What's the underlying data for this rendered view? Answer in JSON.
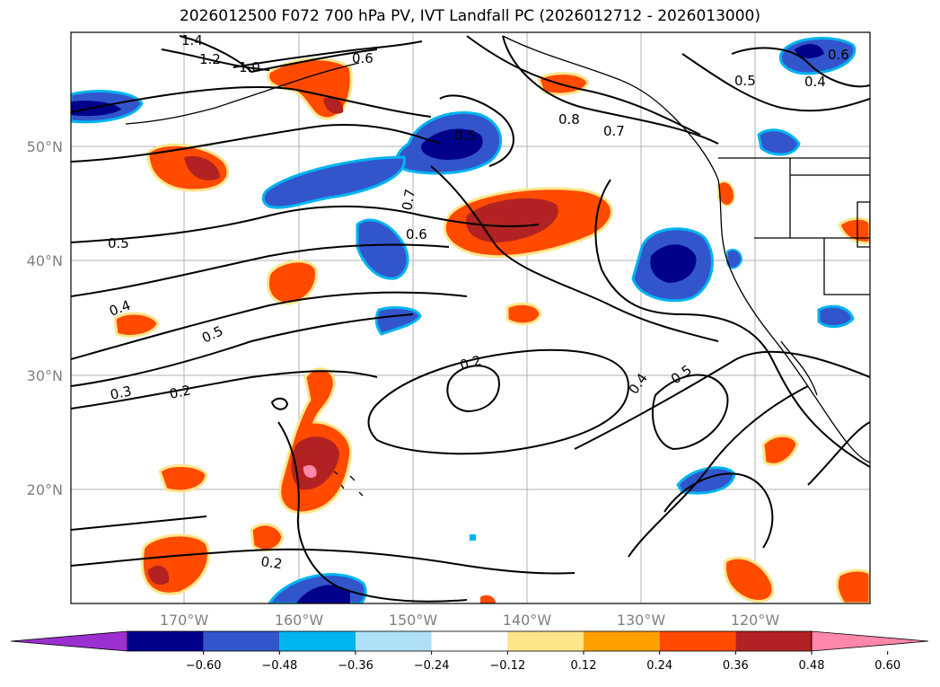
{
  "title": "2026012500 F072 700 hPa PV, IVT Landfall PC (2026012712 - 2026013000)",
  "map": {
    "lat_labels": [
      "50°N",
      "40°N",
      "30°N",
      "20°N"
    ],
    "lon_labels": [
      "170°W",
      "160°W",
      "150°W",
      "140°W",
      "130°W",
      "120°W"
    ],
    "lat_range": [
      10,
      60
    ],
    "lon_range": [
      -180,
      -110
    ],
    "contour_labels": [
      "1.4",
      "1.2",
      "1.0",
      "0.6",
      "0.5",
      "0.8",
      "0.7",
      "0.5",
      "0.6",
      "0.4",
      "0.7",
      "0.6",
      "0.5",
      "0.4",
      "0.5",
      "0.3",
      "0.2",
      "0.2",
      "0.4",
      "0.5",
      "0.2"
    ]
  },
  "colorbar": {
    "colors": [
      "#9b30d0",
      "#00008b",
      "#3355cc",
      "#00b4f0",
      "#aee0f8",
      "#ffffff",
      "#ffe58a",
      "#ffa000",
      "#ff4a00",
      "#b22222",
      "#ff88aa"
    ],
    "tick_labels": [
      "−0.60",
      "−0.48",
      "−0.36",
      "−0.24",
      "−0.12",
      "0.12",
      "0.24",
      "0.36",
      "0.48",
      "0.60"
    ]
  }
}
